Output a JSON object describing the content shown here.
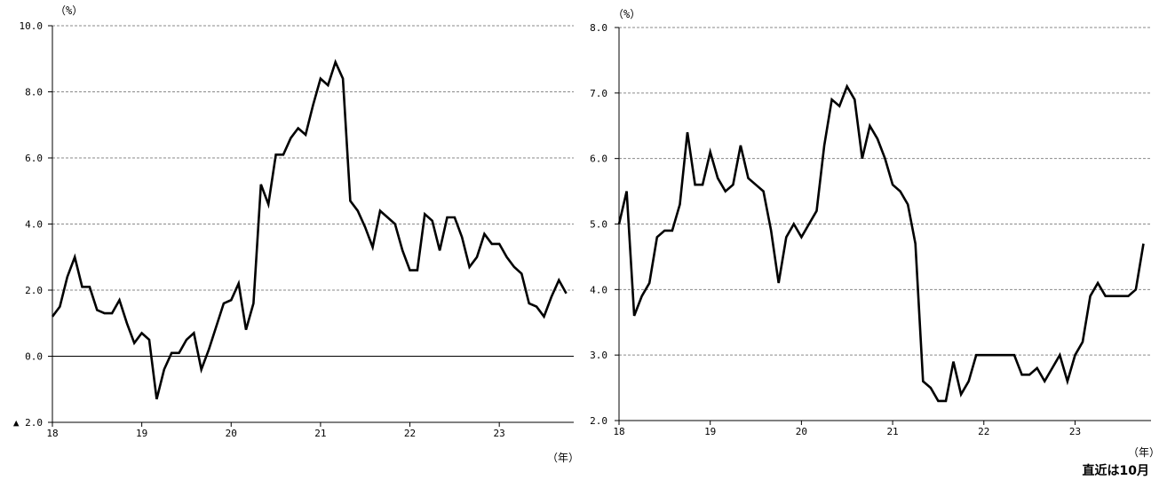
{
  "chart_data": [
    {
      "type": "line",
      "ylabel": "（%）",
      "xlabel": "（年）",
      "ylim": [
        -2,
        10
      ],
      "yticks": [
        -2,
        0,
        2,
        4,
        6,
        8,
        10
      ],
      "ytick_labels": [
        "▲ 2.0",
        "0.0",
        "2.0",
        "4.0",
        "6.0",
        "8.0",
        "10.0"
      ],
      "xlim": [
        2018,
        2023.833
      ],
      "xticks": [
        2018,
        2019,
        2020,
        2021,
        2022,
        2023
      ],
      "xtick_labels": [
        "18",
        "19",
        "20",
        "21",
        "22",
        "23"
      ],
      "grid": true,
      "zero_line": true,
      "line_color": "#000000",
      "x_start": "2018-01",
      "x_step": "month",
      "values": [
        1.2,
        1.5,
        2.4,
        3.0,
        2.1,
        2.1,
        1.4,
        1.3,
        1.3,
        1.7,
        1.0,
        0.4,
        0.7,
        0.5,
        -1.3,
        -0.4,
        0.1,
        0.1,
        0.5,
        0.7,
        -0.4,
        0.2,
        0.9,
        1.6,
        1.7,
        2.2,
        0.8,
        1.6,
        5.2,
        4.6,
        6.1,
        6.1,
        6.6,
        6.9,
        6.7,
        7.6,
        8.4,
        8.2,
        8.9,
        8.4,
        4.7,
        4.4,
        3.9,
        3.3,
        4.4,
        4.2,
        4.0,
        3.2,
        2.6,
        2.6,
        4.3,
        4.1,
        3.2,
        4.2,
        4.2,
        3.6,
        2.7,
        3.0,
        3.7,
        3.4,
        3.4,
        3.0,
        2.7,
        2.5,
        1.6,
        1.5,
        1.2,
        1.8,
        2.3,
        1.9
      ]
    },
    {
      "type": "line",
      "ylabel": "（%）",
      "xlabel": "（年）",
      "note": "直近は10月",
      "ylim": [
        2,
        8
      ],
      "yticks": [
        2,
        3,
        4,
        5,
        6,
        7,
        8
      ],
      "ytick_labels": [
        "2.0",
        "3.0",
        "4.0",
        "5.0",
        "6.0",
        "7.0",
        "8.0"
      ],
      "xlim": [
        2018,
        2023.833
      ],
      "xticks": [
        2018,
        2019,
        2020,
        2021,
        2022,
        2023
      ],
      "xtick_labels": [
        "18",
        "19",
        "20",
        "21",
        "22",
        "23"
      ],
      "grid": true,
      "line_color": "#000000",
      "x_start": "2018-01",
      "x_step": "month",
      "values": [
        5.0,
        5.5,
        3.6,
        3.9,
        4.1,
        4.8,
        4.9,
        4.9,
        5.3,
        6.4,
        5.6,
        5.6,
        6.1,
        5.7,
        5.5,
        5.6,
        6.2,
        5.7,
        5.6,
        5.5,
        4.9,
        4.1,
        4.8,
        5.0,
        4.8,
        5.0,
        5.2,
        6.2,
        6.9,
        6.8,
        7.1,
        6.9,
        6.0,
        6.5,
        6.3,
        6.0,
        5.6,
        5.5,
        5.3,
        4.7,
        2.6,
        2.5,
        2.3,
        2.3,
        2.9,
        2.4,
        2.6,
        3.0,
        3.0,
        3.0,
        3.0,
        3.0,
        3.0,
        2.7,
        2.7,
        2.8,
        2.6,
        2.8,
        3.0,
        2.6,
        3.0,
        3.2,
        3.9,
        4.1,
        3.9,
        3.9,
        3.9,
        3.9,
        4.0,
        4.7
      ]
    }
  ]
}
